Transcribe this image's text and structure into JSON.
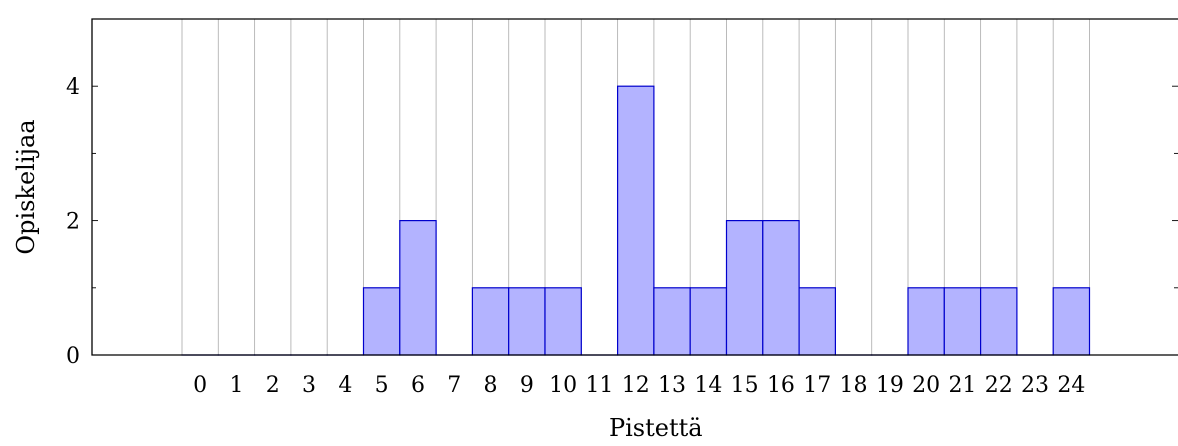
{
  "chart_data": {
    "type": "bar",
    "categories": [
      "0",
      "1",
      "2",
      "3",
      "4",
      "5",
      "6",
      "7",
      "8",
      "9",
      "10",
      "11",
      "12",
      "13",
      "14",
      "15",
      "16",
      "17",
      "18",
      "19",
      "20",
      "21",
      "22",
      "23",
      "24"
    ],
    "values": [
      0,
      0,
      0,
      0,
      0,
      1,
      2,
      0,
      1,
      1,
      1,
      0,
      4,
      1,
      1,
      2,
      2,
      1,
      0,
      0,
      1,
      1,
      1,
      0,
      1
    ],
    "xlabel": "Pistettä",
    "ylabel": "Opiskelijaa",
    "ylim": [
      0,
      5
    ],
    "yticks": [
      0,
      2,
      4
    ],
    "grid": "vertical",
    "colors": {
      "bar_fill": "#b3b3ff",
      "bar_stroke": "#0000cc",
      "grid": "#b3b3b3",
      "axis": "#000000"
    }
  }
}
